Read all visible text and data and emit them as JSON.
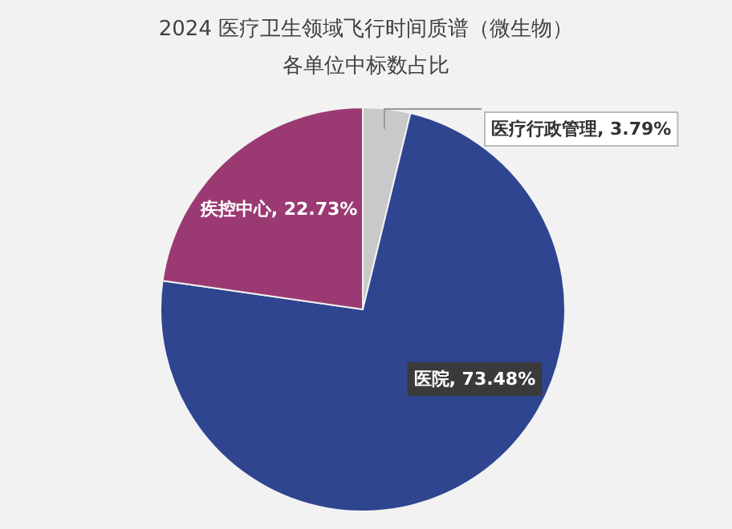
{
  "chart_data": {
    "type": "pie",
    "title": "2024 医疗卫生领域飞行时间质谱（微生物）",
    "subtitle": "各单位中标数占比",
    "categories": [
      "医疗行政管理",
      "医院",
      "疾控中心"
    ],
    "values": [
      3.79,
      73.48,
      22.73
    ],
    "value_labels": [
      "3.79%",
      "73.48%",
      "22.73%"
    ],
    "colors": [
      "#c9c9c9",
      "#2f4590",
      "#9b3a72"
    ]
  }
}
